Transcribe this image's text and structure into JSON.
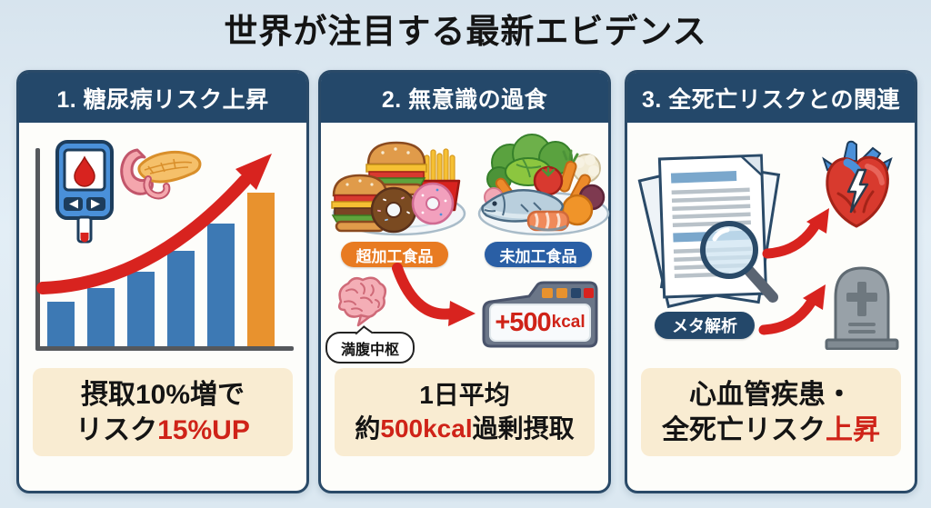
{
  "title": "世界が注目する最新エビデンス",
  "colors": {
    "background": "#dce8f1",
    "panel_header": "#24486a",
    "panel_border": "#2a4a68",
    "summary_box": "#f9ecd2",
    "accent_red": "#cf2318",
    "bar_blue": "#3d79b4",
    "bar_orange": "#e8922e",
    "pill_orange": "#e87b22",
    "pill_blue": "#2a5fa5",
    "pill_navy": "#24486a"
  },
  "panels": [
    {
      "header": "1. 糖尿病リスク上昇",
      "summary": {
        "line1": "摂取10%増で",
        "line2_black": "リスク",
        "line2_red": "15%UP"
      }
    },
    {
      "header": "2. 無意識の過食",
      "labels": {
        "left_plate": "超加工食品",
        "right_plate": "未加工食品",
        "brain": "満腹中枢"
      },
      "device": {
        "value": "+500",
        "unit": "kcal"
      },
      "summary": {
        "line1": "1日平均",
        "line2_prefix": "約",
        "line2_red": "500kcal",
        "line2_suffix": "過剰摂取"
      }
    },
    {
      "header": "3. 全死亡リスクとの関連",
      "labels": {
        "meta": "メタ解析"
      },
      "summary": {
        "line1": "心血管疾患・",
        "line2_black": "全死亡リスク",
        "line2_red": "上昇"
      }
    }
  ],
  "chart_data": {
    "type": "bar",
    "title": "",
    "categories": [
      "1",
      "2",
      "3",
      "4",
      "5",
      "6"
    ],
    "values": [
      49,
      64,
      82,
      105,
      135,
      169
    ],
    "bar_colors": [
      "#3d79b4",
      "#3d79b4",
      "#3d79b4",
      "#3d79b4",
      "#3d79b4",
      "#e8922e"
    ],
    "xlabel": "",
    "ylabel": "",
    "ylim": [
      0,
      190
    ],
    "grid": false,
    "legend": false
  }
}
